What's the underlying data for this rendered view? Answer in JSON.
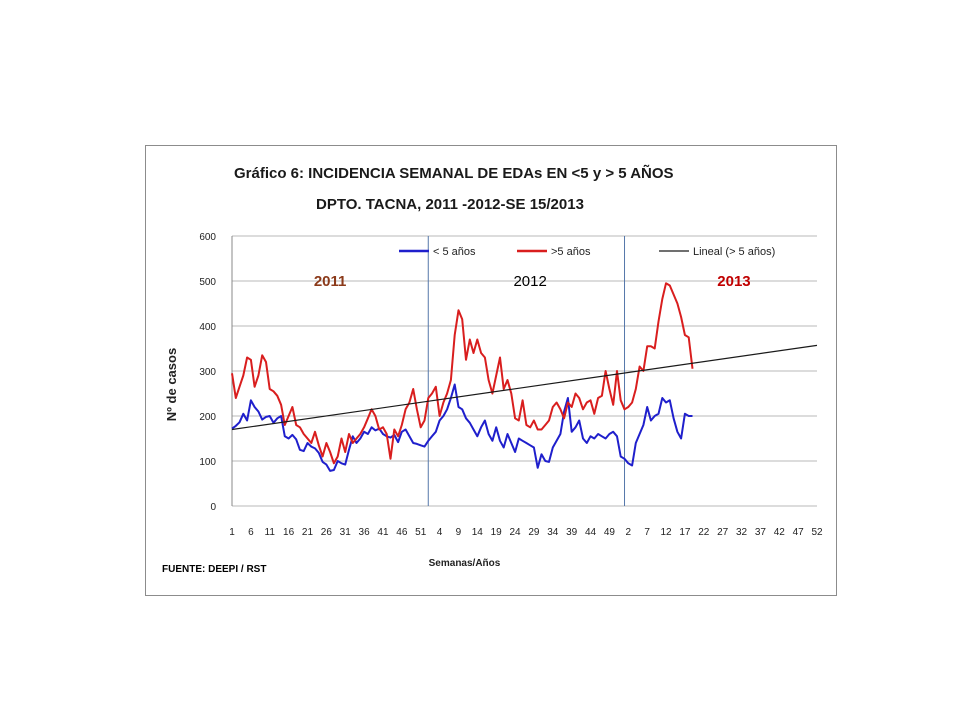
{
  "chart_data": {
    "type": "line",
    "title_line1": "Gráfico 6:  INCIDENCIA SEMANAL DE EDAs EN <5 y > 5 AÑOS",
    "title_line2": "DPTO. TACNA, 2011 -2012-SE 15/2013",
    "xlabel": "Semanas/Años",
    "ylabel": "Nº de casos",
    "ylim": [
      0,
      600
    ],
    "yticks": [
      0,
      100,
      200,
      300,
      400,
      500,
      600
    ],
    "xticks": [
      "1",
      "6",
      "11",
      "16",
      "21",
      "26",
      "31",
      "36",
      "41",
      "46",
      "51",
      "4",
      "9",
      "14",
      "19",
      "24",
      "29",
      "34",
      "39",
      "44",
      "49",
      "2",
      "7",
      "12",
      "17",
      "22",
      "27",
      "32",
      "37",
      "42",
      "47",
      "52"
    ],
    "total_weeks": 156,
    "year_dividers": [
      52,
      104
    ],
    "year_labels": [
      {
        "text": "2011",
        "color": "#8B3A1A",
        "week": 26
      },
      {
        "text": "2012",
        "color": "#000000",
        "week": 79
      },
      {
        "text": "2013",
        "color": "#C00000",
        "week": 133
      }
    ],
    "grid": true,
    "legend_position": "top",
    "series": [
      {
        "name": "< 5 años",
        "color": "#1F1FCC",
        "values": [
          172,
          178,
          186,
          205,
          190,
          235,
          220,
          210,
          192,
          198,
          200,
          185,
          195,
          200,
          155,
          150,
          158,
          148,
          125,
          122,
          140,
          132,
          128,
          118,
          98,
          92,
          78,
          80,
          100,
          95,
          92,
          125,
          155,
          140,
          150,
          165,
          160,
          175,
          168,
          172,
          160,
          155,
          152,
          158,
          142,
          165,
          170,
          155,
          140,
          138,
          135,
          132,
          145,
          155,
          165,
          190,
          200,
          215,
          240,
          270,
          220,
          215,
          195,
          185,
          170,
          155,
          175,
          190,
          160,
          145,
          175,
          145,
          130,
          160,
          140,
          120,
          150,
          145,
          140,
          135,
          130,
          85,
          115,
          100,
          98,
          130,
          145,
          160,
          210,
          240,
          165,
          175,
          190,
          150,
          140,
          155,
          150,
          160,
          155,
          150,
          160,
          165,
          155,
          110,
          105,
          95,
          90,
          140,
          160,
          180,
          220,
          190,
          200,
          205,
          240,
          230,
          235,
          195,
          165,
          150,
          205,
          200,
          200
        ],
        "legend": "< 5 años"
      },
      {
        "name": ">5 años",
        "color": "#D91E1E",
        "values": [
          295,
          240,
          265,
          290,
          330,
          325,
          265,
          290,
          335,
          320,
          260,
          255,
          245,
          225,
          180,
          200,
          220,
          180,
          175,
          160,
          150,
          140,
          165,
          135,
          110,
          140,
          120,
          95,
          110,
          150,
          120,
          160,
          140,
          150,
          160,
          175,
          195,
          215,
          200,
          170,
          175,
          160,
          105,
          170,
          155,
          180,
          215,
          230,
          260,
          215,
          175,
          190,
          240,
          250,
          265,
          200,
          230,
          250,
          280,
          380,
          435,
          415,
          325,
          370,
          340,
          370,
          340,
          330,
          280,
          250,
          290,
          330,
          260,
          280,
          250,
          195,
          190,
          235,
          180,
          175,
          190,
          170,
          170,
          180,
          190,
          220,
          230,
          215,
          195,
          230,
          220,
          250,
          240,
          215,
          230,
          235,
          205,
          240,
          245,
          300,
          260,
          225,
          300,
          235,
          215,
          220,
          230,
          260,
          310,
          300,
          355,
          355,
          350,
          410,
          460,
          495,
          490,
          470,
          450,
          420,
          380,
          375,
          305
        ],
        "legend": ">5 años"
      },
      {
        "name": "Lineal (> 5 años)",
        "color": "#1a1a1a",
        "trend": [
          170,
          357
        ],
        "legend": "Lineal (> 5 años)"
      }
    ]
  },
  "source": "FUENTE: DEEPI / RST"
}
